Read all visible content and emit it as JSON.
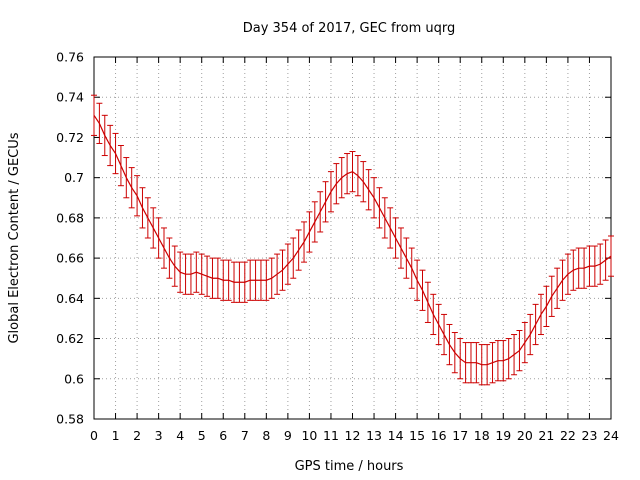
{
  "chart_data": {
    "type": "line",
    "title": "Day 354 of 2017, GEC from uqrg",
    "xlabel": "GPS time / hours",
    "ylabel": "Global Electron Content / GECUs",
    "xlim": [
      0,
      24
    ],
    "ylim": [
      0.58,
      0.76
    ],
    "xticks": [
      "0",
      "1",
      "2",
      "3",
      "4",
      "5",
      "6",
      "7",
      "8",
      "9",
      "10",
      "11",
      "12",
      "13",
      "14",
      "15",
      "16",
      "17",
      "18",
      "19",
      "20",
      "21",
      "22",
      "23",
      "24"
    ],
    "yticks": [
      "0.58",
      "0.6",
      "0.62",
      "0.64",
      "0.66",
      "0.68",
      "0.7",
      "0.72",
      "0.74",
      "0.76"
    ],
    "grid": true,
    "color": "#cc0000",
    "series": [
      {
        "x": [
          0.0,
          0.25,
          0.5,
          0.75,
          1.0,
          1.25,
          1.5,
          1.75,
          2.0,
          2.25,
          2.5,
          2.75,
          3.0,
          3.25,
          3.5,
          3.75,
          4.0,
          4.25,
          4.5,
          4.75,
          5.0,
          5.25,
          5.5,
          5.75,
          6.0,
          6.25,
          6.5,
          6.75,
          7.0,
          7.25,
          7.5,
          7.75,
          8.0,
          8.25,
          8.5,
          8.75,
          9.0,
          9.25,
          9.5,
          9.75,
          10.0,
          10.25,
          10.5,
          10.75,
          11.0,
          11.25,
          11.5,
          11.75,
          12.0,
          12.25,
          12.5,
          12.75,
          13.0,
          13.25,
          13.5,
          13.75,
          14.0,
          14.25,
          14.5,
          14.75,
          15.0,
          15.25,
          15.5,
          15.75,
          16.0,
          16.25,
          16.5,
          16.75,
          17.0,
          17.25,
          17.5,
          17.75,
          18.0,
          18.25,
          18.5,
          18.75,
          19.0,
          19.25,
          19.5,
          19.75,
          20.0,
          20.25,
          20.5,
          20.75,
          21.0,
          21.25,
          21.5,
          21.75,
          22.0,
          22.25,
          22.5,
          22.75,
          23.0,
          23.25,
          23.5,
          23.75,
          24.0
        ],
        "y": [
          0.731,
          0.727,
          0.721,
          0.716,
          0.712,
          0.706,
          0.7,
          0.695,
          0.691,
          0.685,
          0.68,
          0.675,
          0.67,
          0.665,
          0.66,
          0.656,
          0.653,
          0.652,
          0.652,
          0.653,
          0.652,
          0.651,
          0.65,
          0.65,
          0.649,
          0.649,
          0.648,
          0.648,
          0.648,
          0.649,
          0.649,
          0.649,
          0.649,
          0.65,
          0.652,
          0.654,
          0.657,
          0.66,
          0.664,
          0.668,
          0.673,
          0.678,
          0.683,
          0.688,
          0.693,
          0.697,
          0.7,
          0.702,
          0.703,
          0.701,
          0.698,
          0.694,
          0.69,
          0.685,
          0.68,
          0.675,
          0.67,
          0.665,
          0.66,
          0.655,
          0.649,
          0.644,
          0.638,
          0.632,
          0.627,
          0.622,
          0.617,
          0.613,
          0.61,
          0.608,
          0.608,
          0.608,
          0.607,
          0.607,
          0.608,
          0.609,
          0.609,
          0.61,
          0.612,
          0.614,
          0.618,
          0.622,
          0.627,
          0.632,
          0.636,
          0.641,
          0.645,
          0.649,
          0.652,
          0.654,
          0.655,
          0.655,
          0.656,
          0.656,
          0.657,
          0.659,
          0.661
        ],
        "err": 0.01
      }
    ]
  }
}
